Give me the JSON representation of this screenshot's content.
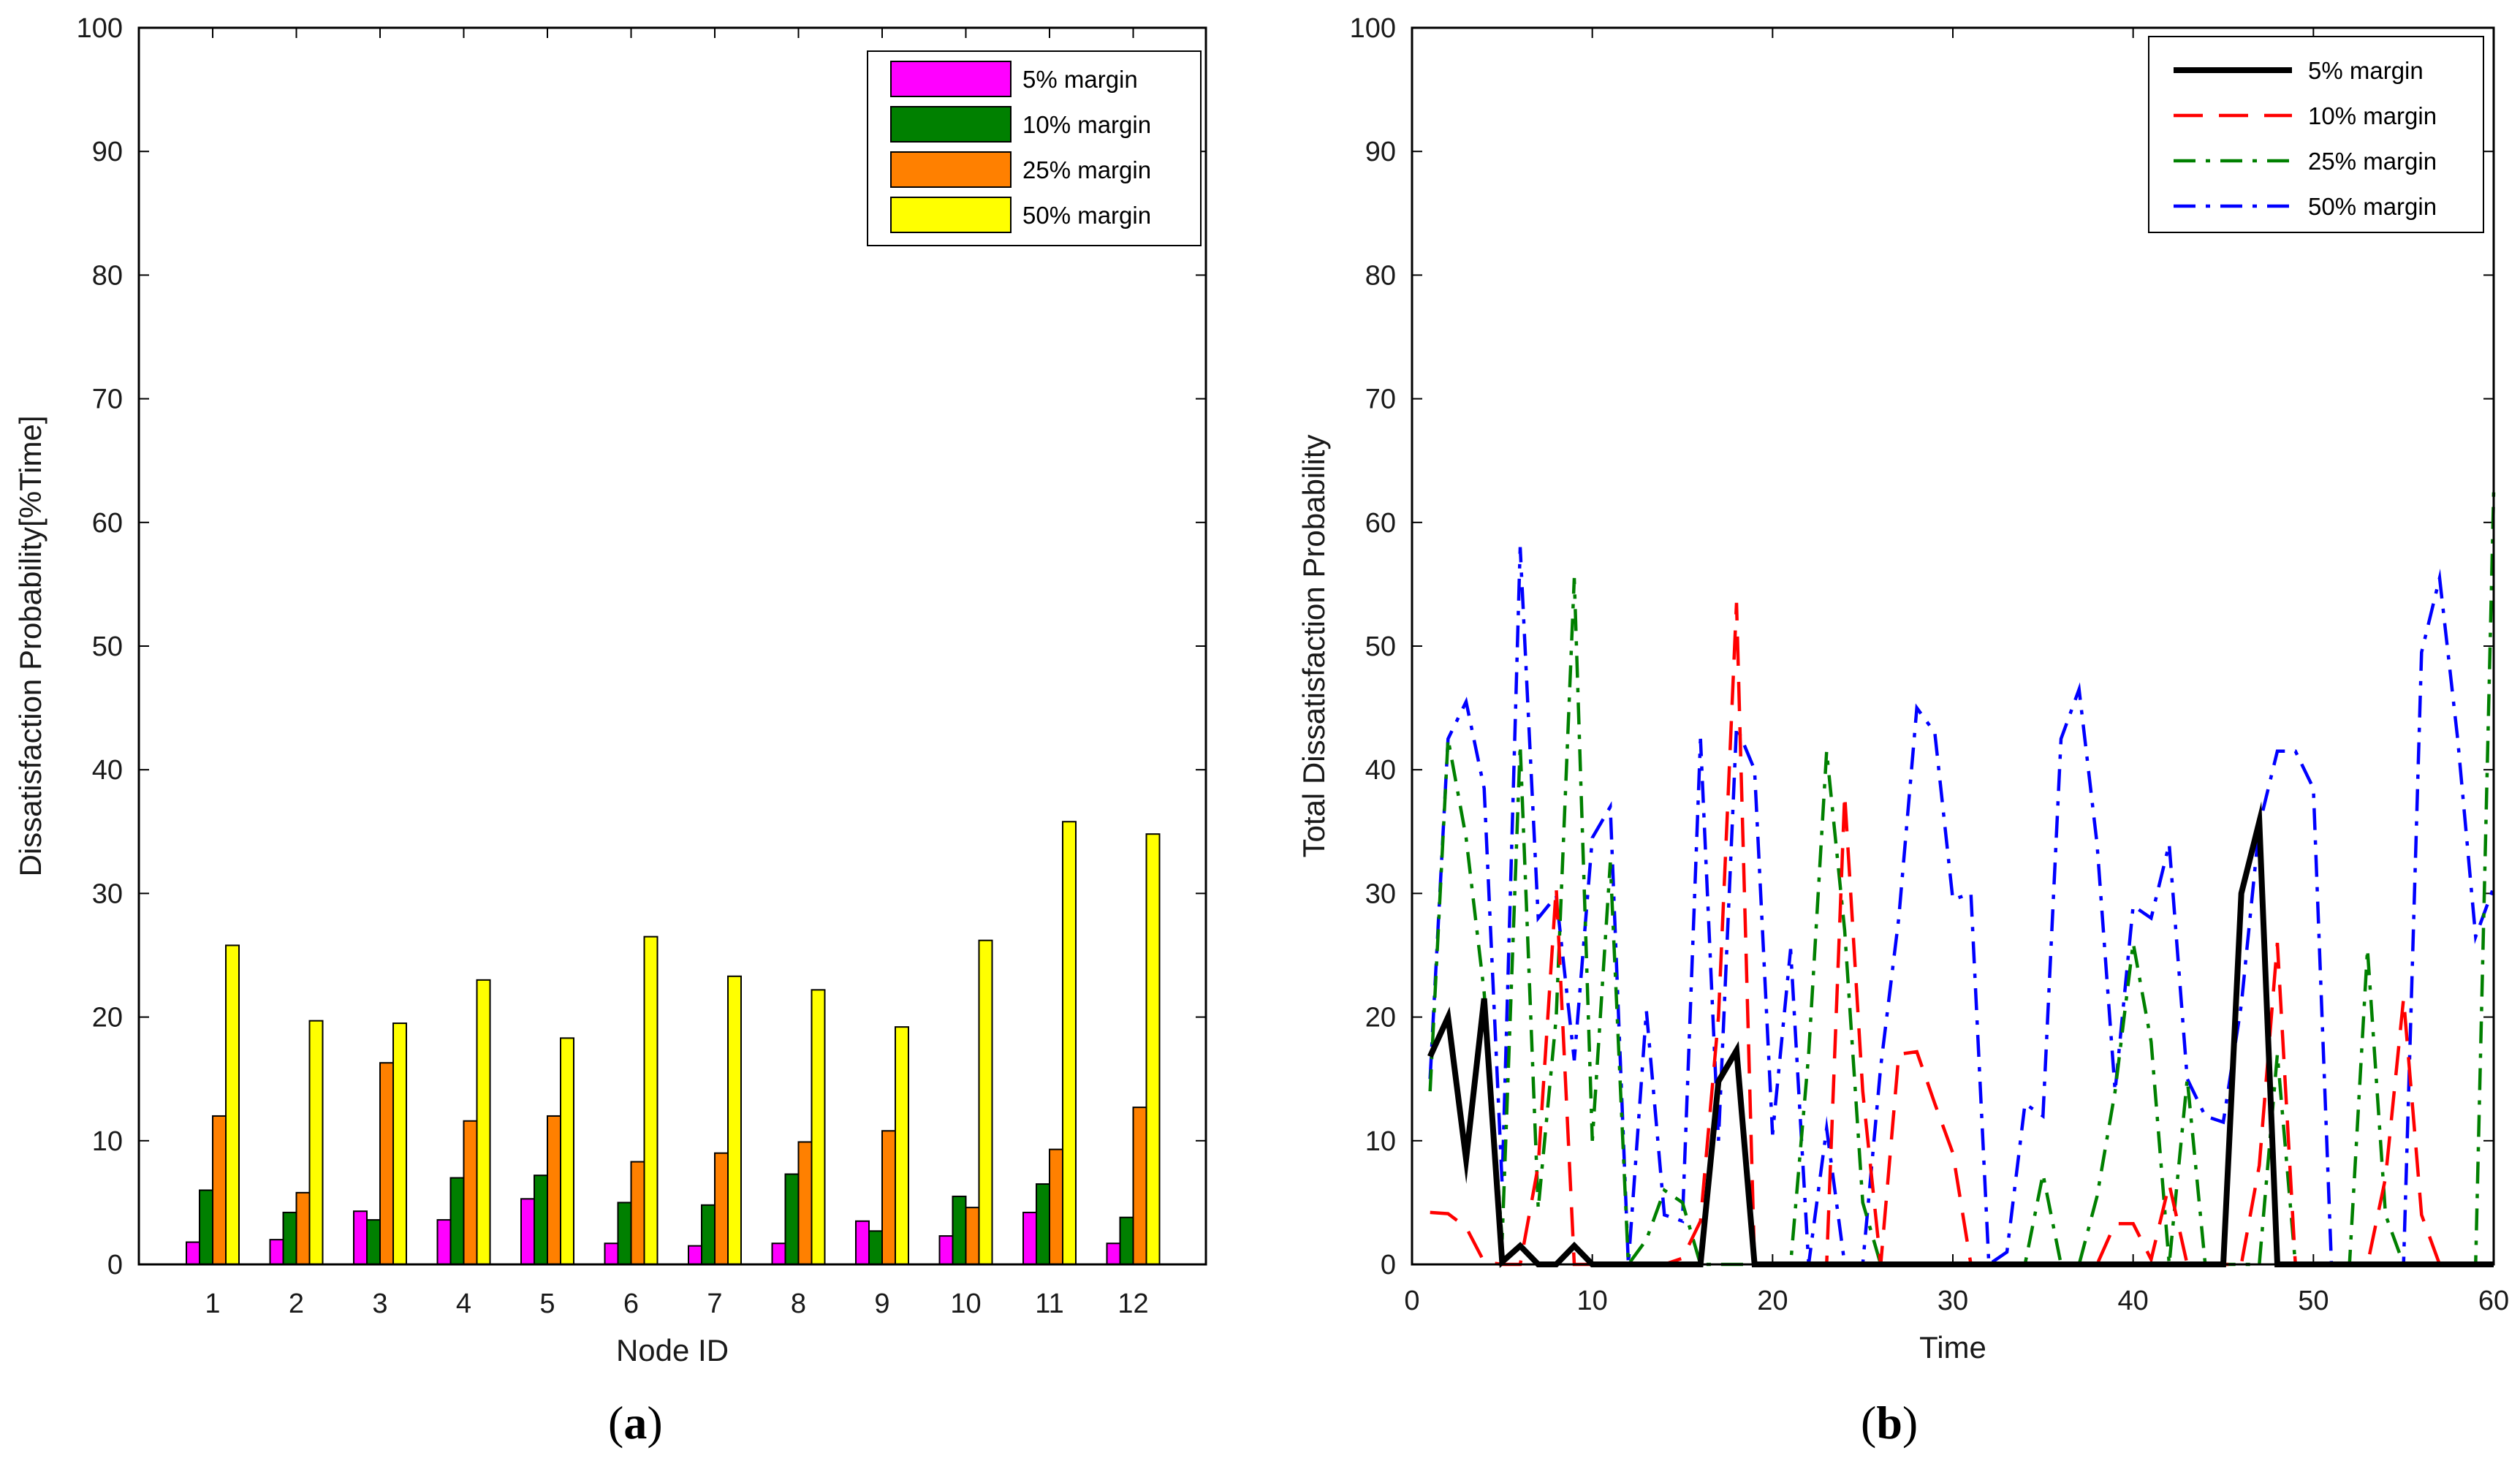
{
  "chart_data": [
    {
      "type": "bar",
      "caption_letter": "a",
      "xlabel": "Node ID",
      "ylabel": "Dissatisfaction Probability[%Time]",
      "ylim": [
        0,
        100
      ],
      "yticks": [
        0,
        10,
        20,
        30,
        40,
        50,
        60,
        70,
        80,
        90,
        100
      ],
      "categories": [
        "1",
        "2",
        "3",
        "4",
        "5",
        "6",
        "7",
        "8",
        "9",
        "10",
        "11",
        "12"
      ],
      "legend_position": "top-right",
      "series": [
        {
          "name": "5% margin",
          "color": "#ff00ff",
          "values": [
            1.8,
            2.0,
            4.3,
            3.6,
            5.3,
            1.7,
            1.5,
            1.7,
            3.5,
            2.3,
            4.2,
            1.7
          ]
        },
        {
          "name": "10% margin",
          "color": "#008000",
          "values": [
            6.0,
            4.2,
            3.6,
            7.0,
            7.2,
            5.0,
            4.8,
            7.3,
            2.7,
            5.5,
            6.5,
            3.8
          ]
        },
        {
          "name": "25% margin",
          "color": "#ff8000",
          "values": [
            12.0,
            5.8,
            16.3,
            11.6,
            12.0,
            8.3,
            9.0,
            9.9,
            10.8,
            4.6,
            9.3,
            12.7
          ]
        },
        {
          "name": "50% margin",
          "color": "#ffff00",
          "values": [
            25.8,
            19.7,
            19.5,
            23.0,
            18.3,
            26.5,
            23.3,
            22.2,
            19.2,
            26.2,
            35.8,
            34.8
          ]
        }
      ]
    },
    {
      "type": "line",
      "caption_letter": "b",
      "xlabel": "Time",
      "ylabel": "Total Dissatisfaction Probability",
      "xlim": [
        0,
        60
      ],
      "ylim": [
        0,
        100
      ],
      "xticks": [
        0,
        10,
        20,
        30,
        40,
        50,
        60
      ],
      "yticks": [
        0,
        10,
        20,
        30,
        40,
        50,
        60,
        70,
        80,
        90,
        100
      ],
      "legend_position": "top-right",
      "x": [
        1,
        2,
        3,
        4,
        5,
        6,
        7,
        8,
        9,
        10,
        11,
        12,
        13,
        14,
        15,
        16,
        17,
        18,
        19,
        20,
        21,
        22,
        23,
        24,
        25,
        26,
        27,
        28,
        29,
        30,
        31,
        32,
        33,
        34,
        35,
        36,
        37,
        38,
        39,
        40,
        41,
        42,
        43,
        44,
        45,
        46,
        47,
        48,
        49,
        50,
        51,
        52,
        53,
        54,
        55,
        56,
        57,
        58,
        59,
        60
      ],
      "series": [
        {
          "name": "5% margin",
          "color": "#000000",
          "style": "solid",
          "values": [
            16.8,
            20.0,
            8.5,
            21.5,
            0.2,
            1.5,
            0.0,
            0.0,
            1.5,
            0.0,
            0,
            0,
            0,
            0,
            0,
            0,
            14.8,
            17.3,
            0,
            0,
            0,
            0,
            0,
            0,
            0,
            0,
            0,
            0,
            0,
            0,
            0,
            0,
            0,
            0,
            0,
            0,
            0,
            0,
            0,
            0,
            0,
            0,
            0,
            0,
            0,
            30.0,
            35.8,
            0,
            0,
            0,
            0,
            0,
            0,
            0,
            0,
            0,
            0,
            0,
            0,
            0
          ]
        },
        {
          "name": "10% margin",
          "color": "#ff0000",
          "style": "dashed",
          "values": [
            4.2,
            4.1,
            3.0,
            0.2,
            0,
            0,
            8.0,
            30.5,
            0,
            0,
            0,
            0,
            0,
            0,
            0.5,
            3.5,
            20.0,
            53.5,
            0,
            0,
            0,
            0,
            0,
            38.0,
            14.0,
            0,
            17.0,
            17.2,
            13.0,
            9.0,
            0,
            0,
            0,
            0,
            0,
            0,
            0,
            0,
            3.3,
            3.3,
            0.4,
            6.5,
            0,
            0,
            0,
            0,
            8.0,
            26.0,
            0,
            0,
            0,
            0,
            0,
            7.0,
            21.5,
            4.0,
            0,
            0,
            0,
            0
          ]
        },
        {
          "name": "25% margin",
          "color": "#008000",
          "style": "dashdot",
          "values": [
            14.0,
            42.5,
            34.5,
            22.0,
            2.0,
            42.0,
            4.5,
            20.0,
            55.5,
            10.0,
            32.5,
            0,
            2.0,
            6.0,
            5.0,
            0,
            0,
            0,
            0,
            0,
            0,
            17.0,
            41.5,
            27.0,
            5.0,
            0,
            0,
            0,
            0,
            0,
            0,
            0,
            0,
            0,
            7.3,
            0,
            0,
            5.5,
            14.0,
            26.0,
            18.0,
            0,
            15.0,
            0,
            0,
            0,
            0,
            17.0,
            0,
            0,
            0,
            0,
            25.5,
            4.0,
            0,
            0,
            0,
            0,
            0,
            62.5
          ]
        },
        {
          "name": "50% margin",
          "color": "#0000ff",
          "style": "dashdot",
          "values": [
            15.0,
            42.5,
            45.5,
            38.5,
            6.5,
            58.0,
            28.0,
            29.8,
            16.5,
            34.5,
            37.0,
            0,
            20.5,
            4.0,
            3.5,
            42.5,
            10.0,
            43.5,
            40.0,
            10.5,
            25.5,
            0,
            11.0,
            0,
            0,
            16.0,
            28.0,
            45.0,
            43.0,
            29.5,
            30.0,
            0,
            1.0,
            13.0,
            12.0,
            42.5,
            46.5,
            34.0,
            14.0,
            29.0,
            28.0,
            34.0,
            15.0,
            12.0,
            11.5,
            21.0,
            35.5,
            41.5,
            41.5,
            38.5,
            0,
            0,
            0,
            0,
            0,
            49.5,
            55.5,
            42.5,
            26.5,
            30.5
          ]
        }
      ]
    }
  ]
}
